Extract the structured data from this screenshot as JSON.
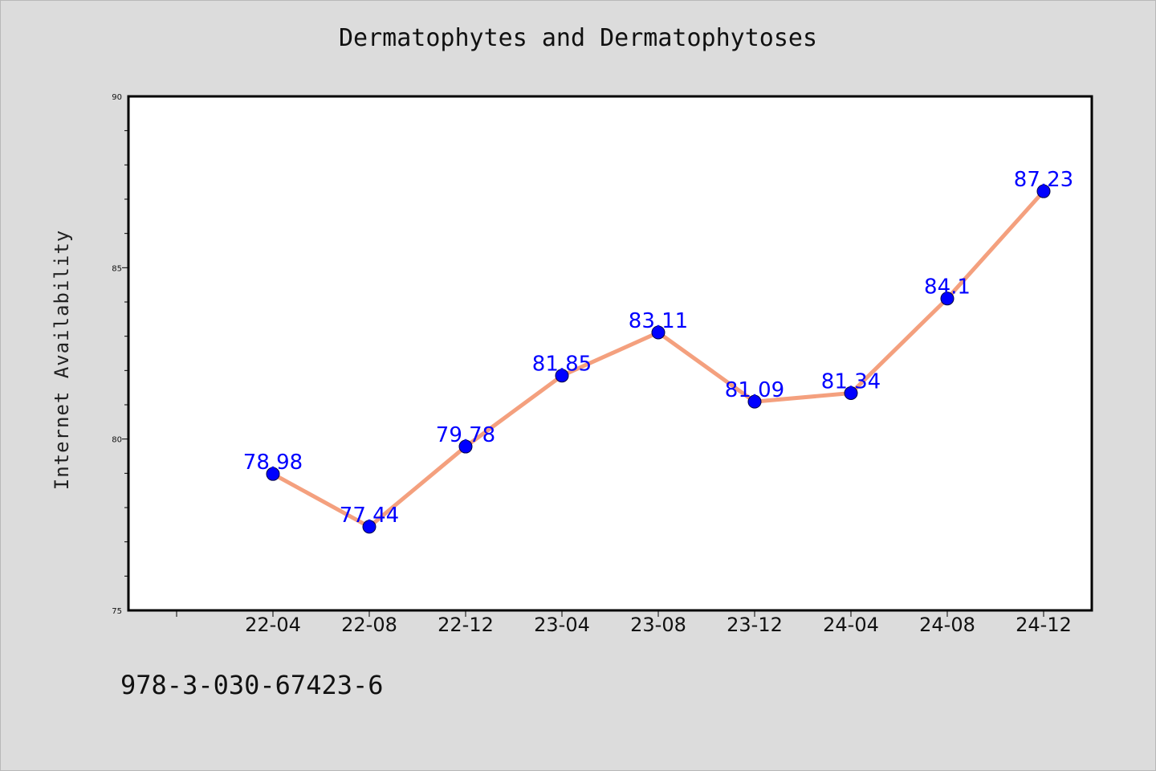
{
  "chart_data": {
    "type": "line",
    "title": "Dermatophytes and Dermatophytoses",
    "ylabel": "Internet Availability",
    "xlabel": "",
    "categories": [
      "22-04",
      "22-08",
      "22-12",
      "23-04",
      "23-08",
      "23-12",
      "24-04",
      "24-08",
      "24-12"
    ],
    "values": [
      78.98,
      77.44,
      79.78,
      81.85,
      83.11,
      81.09,
      81.34,
      84.1,
      87.23
    ],
    "data_labels": [
      "78.98",
      "77.44",
      "79.78",
      "81.85",
      "83.11",
      "81.09",
      "81.34",
      "84.1",
      "87.23"
    ],
    "ylim": [
      75,
      90
    ],
    "yticks": [
      75,
      80,
      85,
      90
    ],
    "ytick_labels": [
      "75",
      "80",
      "85",
      "90"
    ],
    "grid": false,
    "line_color": "#f4a07e",
    "marker_color": "#0000ff",
    "label_color": "#0000ff"
  },
  "footer": {
    "isbn": "978-3-030-67423-6"
  }
}
